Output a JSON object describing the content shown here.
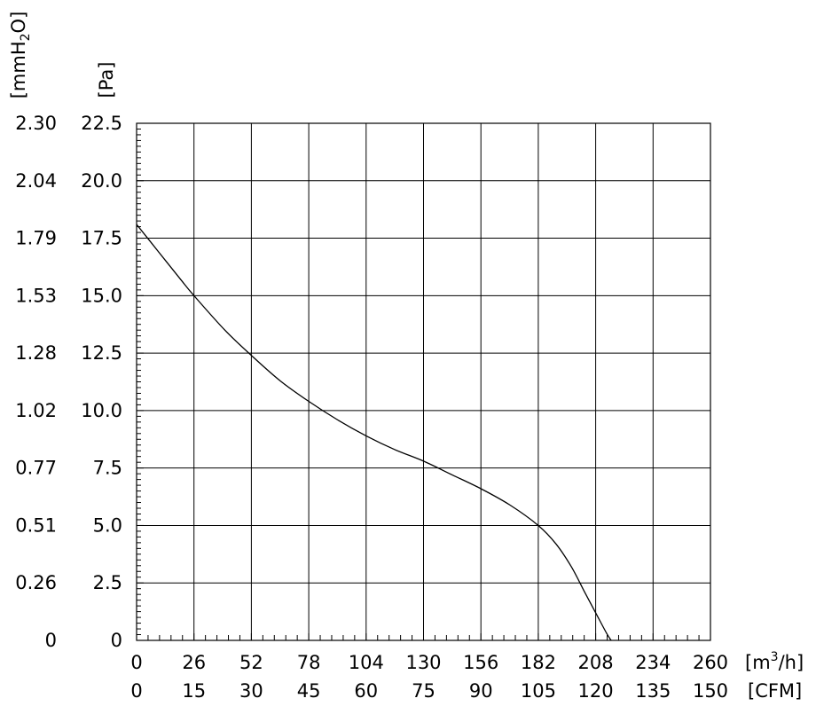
{
  "chart_data": {
    "type": "line",
    "axes": {
      "y_units_pa": "[Pa]",
      "y_units_mmh2o_base": "[mmH",
      "y_units_mmh2o_sub": "2",
      "y_units_mmh2o_end": "O]",
      "x_units_m3h_base": "[m",
      "x_units_m3h_sup": "3",
      "x_units_m3h_end": "/h]",
      "x_units_cfm": "[CFM]"
    },
    "y_ticks_pa": [
      "0",
      "2.5",
      "5.0",
      "7.5",
      "10.0",
      "12.5",
      "15.0",
      "17.5",
      "20.0",
      "22.5"
    ],
    "y_ticks_mmh2o": [
      "0",
      "0.26",
      "0.51",
      "0.77",
      "1.02",
      "1.28",
      "1.53",
      "1.79",
      "2.04",
      "2.30"
    ],
    "x_ticks_m3h": [
      "0",
      "26",
      "52",
      "78",
      "104",
      "130",
      "156",
      "182",
      "208",
      "234",
      "260"
    ],
    "x_ticks_cfm": [
      "0",
      "15",
      "30",
      "45",
      "60",
      "75",
      "90",
      "105",
      "120",
      "135",
      "150"
    ],
    "xlim_m3h": [
      0,
      260
    ],
    "ylim_pa": [
      0,
      22.5
    ],
    "grid": true,
    "series": [
      {
        "color": "#000000",
        "points_m3h_pa": [
          [
            0,
            18.1
          ],
          [
            10,
            16.9
          ],
          [
            20,
            15.7
          ],
          [
            26,
            15.0
          ],
          [
            40,
            13.5
          ],
          [
            52,
            12.4
          ],
          [
            65,
            11.3
          ],
          [
            78,
            10.4
          ],
          [
            91,
            9.6
          ],
          [
            104,
            8.9
          ],
          [
            117,
            8.3
          ],
          [
            130,
            7.8
          ],
          [
            143,
            7.2
          ],
          [
            156,
            6.6
          ],
          [
            169,
            5.9
          ],
          [
            182,
            5.0
          ],
          [
            190,
            4.2
          ],
          [
            197,
            3.2
          ],
          [
            203,
            2.1
          ],
          [
            208,
            1.2
          ],
          [
            213,
            0.3
          ],
          [
            215,
            0
          ]
        ]
      }
    ]
  }
}
